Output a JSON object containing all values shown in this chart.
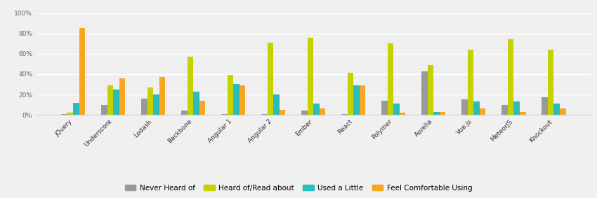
{
  "categories": [
    "jQuery",
    "Underscore",
    "Lodash",
    "Backbone",
    "Angular 1",
    "Angular 2",
    "Ember",
    "React",
    "Polymer",
    "Aurelia",
    "Vue.js",
    "MeteorJS",
    "Knockout"
  ],
  "series": [
    {
      "name": "Never Heard of",
      "color": "#999999",
      "values": [
        1,
        10,
        16,
        4,
        1,
        1,
        4,
        1,
        14,
        43,
        15,
        10,
        17
      ]
    },
    {
      "name": "Heard of/Read about",
      "color": "#c5d100",
      "values": [
        2,
        29,
        27,
        57,
        39,
        71,
        76,
        41,
        70,
        49,
        64,
        74,
        64
      ]
    },
    {
      "name": "Used a Little",
      "color": "#2bbcbc",
      "values": [
        12,
        25,
        20,
        23,
        30,
        20,
        11,
        29,
        11,
        3,
        13,
        13,
        11
      ]
    },
    {
      "name": "Feel Comfortable Using",
      "color": "#f5a623",
      "values": [
        85,
        36,
        37,
        14,
        29,
        5,
        6,
        29,
        2,
        3,
        6,
        3,
        6
      ]
    }
  ],
  "ylim": [
    0,
    105
  ],
  "yticks": [
    0,
    20,
    40,
    60,
    80,
    100
  ],
  "ytick_labels": [
    "0%",
    "20%",
    "40%",
    "60%",
    "80%",
    "100%"
  ],
  "background_color": "#f0f0f0",
  "plot_background_color": "#efefef",
  "grid_color": "#ffffff",
  "bar_width": 0.15,
  "tick_fontsize": 6.5,
  "legend_fontsize": 7.5
}
